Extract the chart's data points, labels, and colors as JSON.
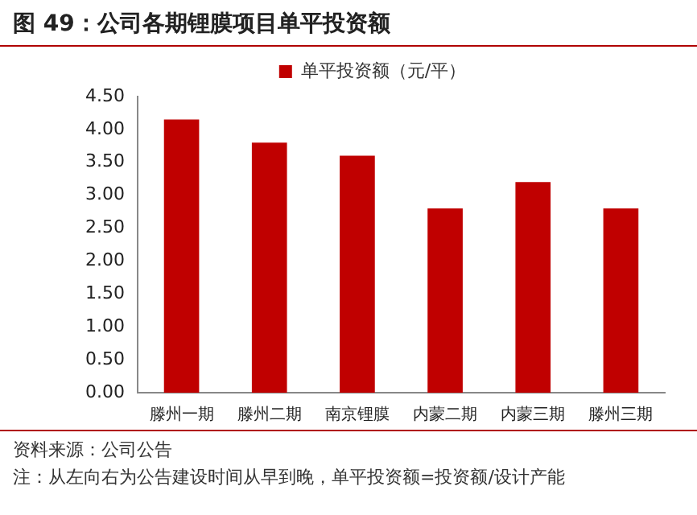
{
  "chart_data": {
    "type": "bar",
    "title": "图 49：公司各期锂膜项目单平投资额",
    "categories": [
      "滕州一期",
      "滕州二期",
      "南京锂膜",
      "内蒙二期",
      "内蒙三期",
      "滕州三期"
    ],
    "series": [
      {
        "name": "单平投资额（元/平）",
        "color": "#c00000",
        "values": [
          4.15,
          3.8,
          3.6,
          2.8,
          3.2,
          2.8
        ]
      }
    ],
    "ylim": [
      0,
      4.5
    ],
    "yticks": [
      {
        "value": 0,
        "label": "0.00"
      },
      {
        "value": 0.5,
        "label": "0.50"
      },
      {
        "value": 1,
        "label": "1.00"
      },
      {
        "value": 1.5,
        "label": "1.50"
      },
      {
        "value": 2,
        "label": "2.00"
      },
      {
        "value": 2.5,
        "label": "2.50"
      },
      {
        "value": 3,
        "label": "3.00"
      },
      {
        "value": 3.5,
        "label": "3.50"
      },
      {
        "value": 4,
        "label": "4.00"
      },
      {
        "value": 4.5,
        "label": "4.50"
      }
    ],
    "grid": false,
    "legend": "top",
    "annotations": [
      "资料来源：公司公告",
      "注：从左向右为公告建设时间从早到晚，单平投资额=投资额/设计产能"
    ]
  }
}
